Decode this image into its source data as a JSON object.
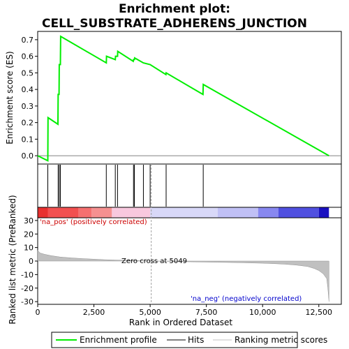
{
  "chart_data": {
    "type": "line",
    "title_line1": "Enrichment plot:",
    "title_line2": "CELL_SUBSTRATE_ADHERENS_JUNCTION",
    "es_panel": {
      "ylabel": "Enrichment score (ES)",
      "ylim": [
        -0.05,
        0.75
      ],
      "yticks": [
        "0.0",
        "0.1",
        "0.2",
        "0.3",
        "0.4",
        "0.5",
        "0.6",
        "0.7"
      ],
      "ytick_values": [
        0.0,
        0.1,
        0.2,
        0.3,
        0.4,
        0.5,
        0.6,
        0.7
      ],
      "color": "#00ee00",
      "series": {
        "name": "Enrichment profile",
        "x": [
          0,
          450,
          460,
          900,
          910,
          950,
          960,
          1010,
          1020,
          3050,
          3060,
          3450,
          3460,
          3550,
          3560,
          4250,
          4260,
          4300,
          4310,
          4700,
          5000,
          5700,
          5710,
          7350,
          7360,
          12950
        ],
        "y": [
          0.0,
          -0.03,
          0.23,
          0.19,
          0.37,
          0.37,
          0.55,
          0.55,
          0.72,
          0.56,
          0.6,
          0.58,
          0.6,
          0.6,
          0.63,
          0.57,
          0.58,
          0.58,
          0.59,
          0.56,
          0.55,
          0.49,
          0.5,
          0.37,
          0.43,
          0.0
        ]
      }
    },
    "hits": {
      "name": "Hits",
      "x": [
        450,
        910,
        960,
        1010,
        3050,
        3450,
        3550,
        4260,
        4300,
        4700,
        5000,
        5710,
        7360
      ]
    },
    "color_bar": {
      "segments": [
        {
          "from": 0,
          "to": 450,
          "color": "#e8302f"
        },
        {
          "from": 450,
          "to": 1800,
          "color": "#f25050"
        },
        {
          "from": 1800,
          "to": 2400,
          "color": "#f57070"
        },
        {
          "from": 2400,
          "to": 3300,
          "color": "#f59090"
        },
        {
          "from": 3300,
          "to": 5000,
          "color": "#f8c8de"
        },
        {
          "from": 5000,
          "to": 8000,
          "color": "#d8d8f8"
        },
        {
          "from": 8000,
          "to": 9800,
          "color": "#c0c0f5"
        },
        {
          "from": 9800,
          "to": 10700,
          "color": "#8888f0"
        },
        {
          "from": 10700,
          "to": 12500,
          "color": "#5050e0"
        },
        {
          "from": 12500,
          "to": 12950,
          "color": "#1a10c0"
        }
      ]
    },
    "metric_panel": {
      "ylabel": "Ranked list metric (PreRanked)",
      "xlabel": "Rank in Ordered Dataset",
      "ylim": [
        -32,
        32
      ],
      "yticks": [
        "30",
        "20",
        "10",
        "0",
        "-10",
        "-20",
        "-30"
      ],
      "ytick_values": [
        30,
        20,
        10,
        0,
        -10,
        -20,
        -30
      ],
      "xlim": [
        0,
        13500
      ],
      "xticks": [
        "0",
        "2,500",
        "5,000",
        "7,500",
        "10,000",
        "12,500"
      ],
      "xtick_values": [
        0,
        2500,
        5000,
        7500,
        10000,
        12500
      ],
      "series": {
        "name": "Ranking metric scores",
        "x": [
          0,
          100,
          300,
          600,
          1000,
          1500,
          2000,
          2500,
          3000,
          3500,
          4000,
          4500,
          5049,
          6000,
          7000,
          8000,
          9000,
          10000,
          10500,
          11000,
          11500,
          12000,
          12300,
          12500,
          12700,
          12850,
          12900,
          12950
        ],
        "y": [
          8,
          6,
          5,
          4,
          3,
          2.3,
          1.8,
          1.4,
          1.0,
          0.7,
          0.5,
          0.3,
          0,
          -0.3,
          -0.6,
          -0.9,
          -1.2,
          -1.6,
          -1.9,
          -2.3,
          -3.0,
          -4.0,
          -5.5,
          -7.0,
          -9.5,
          -13,
          -20,
          -30
        ]
      },
      "annotations": {
        "pos": "'na_pos' (positively correlated)",
        "zero": "Zero cross at 5049",
        "neg": "'na_neg' (negatively correlated)"
      },
      "zero_cross": 5049
    },
    "legend": [
      "Enrichment profile",
      "Hits",
      "Ranking metric scores"
    ]
  }
}
